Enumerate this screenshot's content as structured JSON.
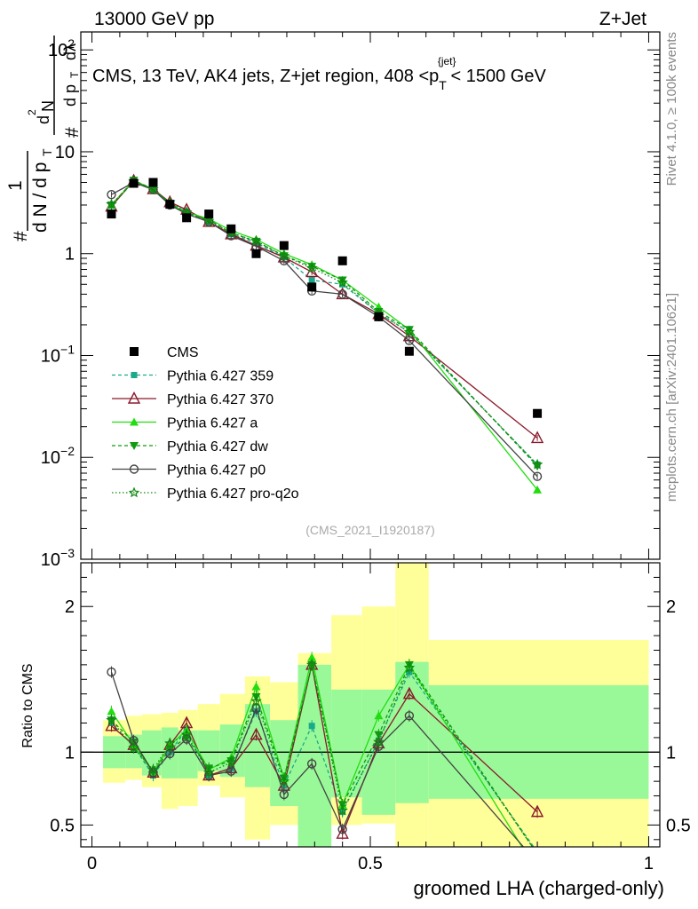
{
  "header": {
    "left": "13000 GeV pp",
    "right": "Z+Jet",
    "side_version": "Rivet 4.1.0, ≥ 100k events",
    "side_url": "mcplots.cern.ch [arXiv:2401.10621]",
    "analysis_id": "(CMS_2021_I1920187)"
  },
  "chart_data": {
    "type": "scatter",
    "title_parts": {
      "prefix": "CMS, 13 TeV, AK4 jets, Z+jet region, 408 <p",
      "sub": "T",
      "sup": "{jet}",
      "suffix": "< 1500 GeV"
    },
    "ylabel_parts": {
      "hash": "#",
      "one": "1",
      "dN": "d N / d p",
      "T": "T",
      "num2": "#",
      "dp": "d p",
      "dl": "dλ",
      "d2": "d",
      "two": "2",
      "N": "N"
    },
    "xlabel": "groomed LHA (charged-only)",
    "ratio_ylabel": "Ratio to CMS",
    "xlim": [
      -0.02,
      1.02
    ],
    "ylim_log": [
      0.001,
      150
    ],
    "ratio_ylim": [
      0.35,
      2.3
    ],
    "x_ticks": [
      0,
      0.5,
      1
    ],
    "x_tick_labels": [
      "0",
      "0.5",
      "1"
    ],
    "y_tick_labels": [
      {
        "v": 0.001,
        "base": "10",
        "exp": "−3"
      },
      {
        "v": 0.01,
        "base": "10",
        "exp": "−2"
      },
      {
        "v": 0.1,
        "base": "10",
        "exp": "−1"
      },
      {
        "v": 1,
        "base": "1",
        "exp": ""
      },
      {
        "v": 10,
        "base": "10",
        "exp": ""
      },
      {
        "v": 100,
        "base": "10",
        "exp": "2"
      }
    ],
    "ratio_tick_labels": [
      {
        "v": 0.5,
        "label": "0.5"
      },
      {
        "v": 1,
        "label": "1"
      },
      {
        "v": 2,
        "label": "2"
      }
    ],
    "ratio_right_labels": [
      {
        "v": 0.5,
        "label": "0.5"
      },
      {
        "v": 1,
        "label": "1"
      },
      {
        "v": 2,
        "label": "2"
      }
    ],
    "x": [
      0.035,
      0.075,
      0.11,
      0.14,
      0.17,
      0.21,
      0.25,
      0.295,
      0.345,
      0.395,
      0.45,
      0.515,
      0.57,
      0.8
    ],
    "bin_edges": [
      0.02,
      0.06,
      0.09,
      0.125,
      0.155,
      0.19,
      0.23,
      0.275,
      0.32,
      0.37,
      0.43,
      0.485,
      0.545,
      0.605,
      1.0
    ],
    "band_ratio": {
      "yellow_lo": [
        0.79,
        0.81,
        0.76,
        0.61,
        0.63,
        0.77,
        0.69,
        0.4,
        0.5,
        0.33,
        0.5,
        0.51,
        0.35,
        0.35
      ],
      "yellow_hi": [
        1.22,
        1.25,
        1.26,
        1.27,
        1.29,
        1.33,
        1.4,
        1.52,
        1.48,
        1.68,
        1.94,
        2.0,
        2.3,
        1.77
      ],
      "green_lo": [
        0.89,
        0.89,
        0.84,
        0.82,
        0.82,
        0.87,
        0.83,
        0.76,
        0.63,
        0.35,
        0.69,
        0.57,
        0.65,
        0.68
      ],
      "green_hi": [
        1.11,
        1.12,
        1.15,
        1.17,
        1.15,
        1.15,
        1.19,
        1.33,
        1.22,
        1.6,
        1.43,
        1.43,
        1.62,
        1.46
      ]
    },
    "data": {
      "name": "CMS",
      "values": [
        2.45,
        4.9,
        5.0,
        3.05,
        2.25,
        2.45,
        1.75,
        1.0,
        1.2,
        0.47,
        0.85,
        0.24,
        0.11,
        0.027
      ]
    },
    "series": [
      {
        "name": "Pythia 6.427 359",
        "color": "#19a98b",
        "dash": "4,3",
        "marker": "square",
        "values": [
          2.95,
          5.1,
          4.2,
          3.05,
          2.6,
          2.05,
          1.55,
          1.28,
          0.92,
          0.55,
          0.5,
          0.26,
          0.17,
          0.0085
        ],
        "ratio": [
          1.2,
          1.04,
          0.84,
          1.0,
          1.16,
          0.84,
          0.89,
          1.28,
          0.77,
          1.18,
          0.59,
          1.08,
          1.55,
          0.315
        ]
      },
      {
        "name": "Pythia 6.427 370",
        "color": "#8b1a2b",
        "dash": "",
        "marker": "triangle-open",
        "values": [
          2.9,
          5.2,
          4.3,
          3.2,
          2.7,
          2.05,
          1.55,
          1.2,
          0.92,
          0.66,
          0.4,
          0.255,
          0.155,
          0.0155
        ],
        "ratio": [
          1.18,
          1.05,
          0.86,
          1.05,
          1.2,
          0.84,
          0.89,
          1.12,
          0.77,
          1.6,
          0.44,
          1.06,
          1.4,
          0.59
        ]
      },
      {
        "name": "Pythia 6.427 a",
        "color": "#22dd11",
        "dash": "",
        "marker": "triangle",
        "values": [
          3.0,
          5.2,
          4.3,
          3.05,
          2.55,
          2.2,
          1.68,
          1.38,
          1.0,
          0.78,
          0.55,
          0.3,
          0.18,
          0.0048
        ],
        "ratio": [
          1.28,
          1.05,
          0.86,
          1.05,
          1.15,
          0.88,
          0.96,
          1.45,
          0.82,
          1.65,
          0.64,
          1.25,
          1.6,
          0.18
        ]
      },
      {
        "name": "Pythia 6.427 dw",
        "color": "#119911",
        "dash": "4,3",
        "marker": "triangle-down",
        "values": [
          3.0,
          5.25,
          4.3,
          3.1,
          2.45,
          2.15,
          1.6,
          1.32,
          0.95,
          0.75,
          0.55,
          0.27,
          0.18,
          0.0082
        ],
        "ratio": [
          1.22,
          1.07,
          0.86,
          1.02,
          1.1,
          0.89,
          0.94,
          1.38,
          0.82,
          1.6,
          0.64,
          1.12,
          1.6,
          0.3
        ]
      },
      {
        "name": "Pythia 6.427 p0",
        "color": "#444444",
        "dash": "",
        "marker": "circle-open",
        "values": [
          3.8,
          5.0,
          4.25,
          3.0,
          2.45,
          2.05,
          1.5,
          1.18,
          0.85,
          0.43,
          0.4,
          0.24,
          0.14,
          0.0065
        ],
        "ratio": [
          1.55,
          1.08,
          0.86,
          0.99,
          1.09,
          0.84,
          0.87,
          1.3,
          0.71,
          0.92,
          0.47,
          1.04,
          1.25,
          0.24
        ]
      },
      {
        "name": "Pythia 6.427 pro-q2o",
        "color": "#118811",
        "dash": "1.5,2.5",
        "marker": "star",
        "values": [
          3.05,
          5.1,
          4.3,
          3.2,
          2.55,
          2.1,
          1.6,
          1.33,
          0.95,
          0.72,
          0.52,
          0.26,
          0.17,
          0.0085
        ],
        "ratio": [
          1.22,
          1.03,
          0.88,
          1.06,
          1.12,
          0.86,
          0.93,
          1.35,
          0.8,
          1.6,
          0.6,
          1.07,
          1.58,
          0.3
        ]
      }
    ]
  }
}
